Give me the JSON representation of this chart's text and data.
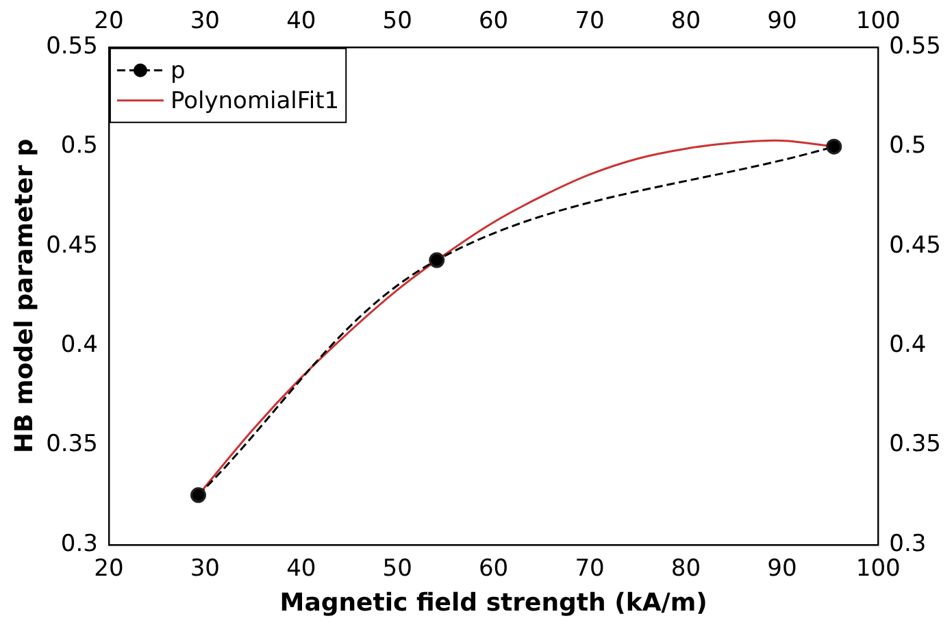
{
  "chart_data": {
    "type": "line",
    "xlabel": "Magnetic field strength (kA/m)",
    "ylabel": "HB model parameter p",
    "xlim": [
      20,
      100
    ],
    "xticks": [
      20,
      30,
      40,
      50,
      60,
      70,
      80,
      90,
      100
    ],
    "x2lim": [
      20,
      100
    ],
    "x2ticks": [
      20,
      30,
      40,
      50,
      60,
      70,
      80,
      90,
      100
    ],
    "ylim": [
      0.3,
      0.55
    ],
    "yticks": [
      0.3,
      0.35,
      0.4,
      0.45,
      0.5,
      0.55
    ],
    "y2lim": [
      0.3,
      0.55
    ],
    "y2ticks": [
      0.3,
      0.35,
      0.4,
      0.45,
      0.5,
      0.55
    ],
    "grid": false,
    "legend": "top left",
    "series": [
      {
        "name": "p",
        "color": "#000000",
        "marker": "circle",
        "line_style": "dashed",
        "x": [
          29.3,
          54.1,
          95.4
        ],
        "values": [
          0.325,
          0.443,
          0.5
        ]
      },
      {
        "name": "PolynomialFit1",
        "color": "#cc3333",
        "marker": "none",
        "line_style": "solid",
        "x": [
          29.3,
          35,
          40,
          45,
          50,
          55,
          60,
          65,
          70,
          75,
          80,
          85,
          90,
          95.4
        ],
        "values": [
          0.325,
          0.358,
          0.384,
          0.407,
          0.428,
          0.446,
          0.462,
          0.475,
          0.486,
          0.494,
          0.499,
          0.502,
          0.503,
          0.5
        ]
      }
    ]
  }
}
